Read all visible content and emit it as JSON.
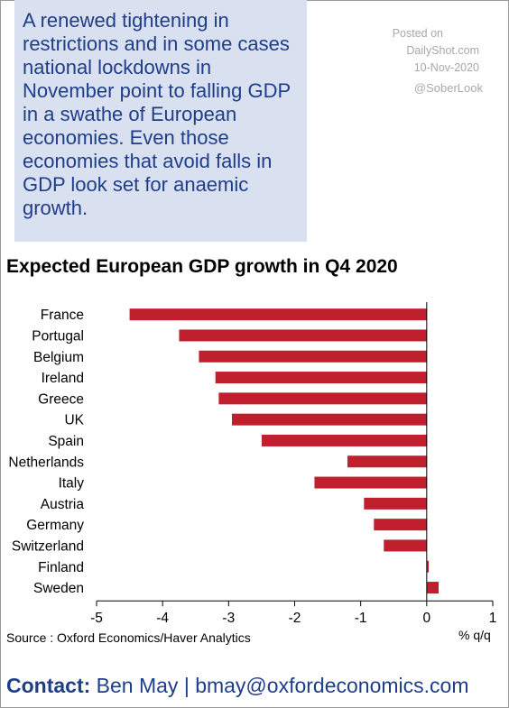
{
  "callout": {
    "text": "A renewed tightening in restrictions and in some cases national lockdowns in November point to falling GDP in a swathe of European economies. Even those economies that avoid falls in GDP look set for anaemic growth."
  },
  "watermark": {
    "posted_on": "Posted on",
    "site": "DailyShot.com",
    "date": "10-Nov-2020",
    "handle": "@SoberLook"
  },
  "source": "Source : Oxford Economics/Haver Analytics",
  "contact": {
    "label": "Contact:",
    "text": "Ben May | bmay@oxfordeconomics.com"
  },
  "colors": {
    "bar": "#c0202e",
    "callout_bg": "#d9e0f0",
    "callout_text": "#1f3e8a"
  },
  "chart_data": {
    "type": "bar",
    "orientation": "horizontal",
    "title": "Expected European GDP growth in Q4 2020",
    "xlabel": "% q/q",
    "xlim": [
      -5,
      1
    ],
    "xticks": [
      -5,
      -4,
      -3,
      -2,
      -1,
      0,
      1
    ],
    "grid": false,
    "categories": [
      "France",
      "Portugal",
      "Belgium",
      "Ireland",
      "Greece",
      "UK",
      "Spain",
      "Netherlands",
      "Italy",
      "Austria",
      "Germany",
      "Switzerland",
      "Finland",
      "Sweden"
    ],
    "values": [
      -4.5,
      -3.75,
      -3.45,
      -3.2,
      -3.15,
      -2.95,
      -2.5,
      -1.2,
      -1.7,
      -0.95,
      -0.8,
      -0.65,
      0.03,
      0.18
    ]
  }
}
